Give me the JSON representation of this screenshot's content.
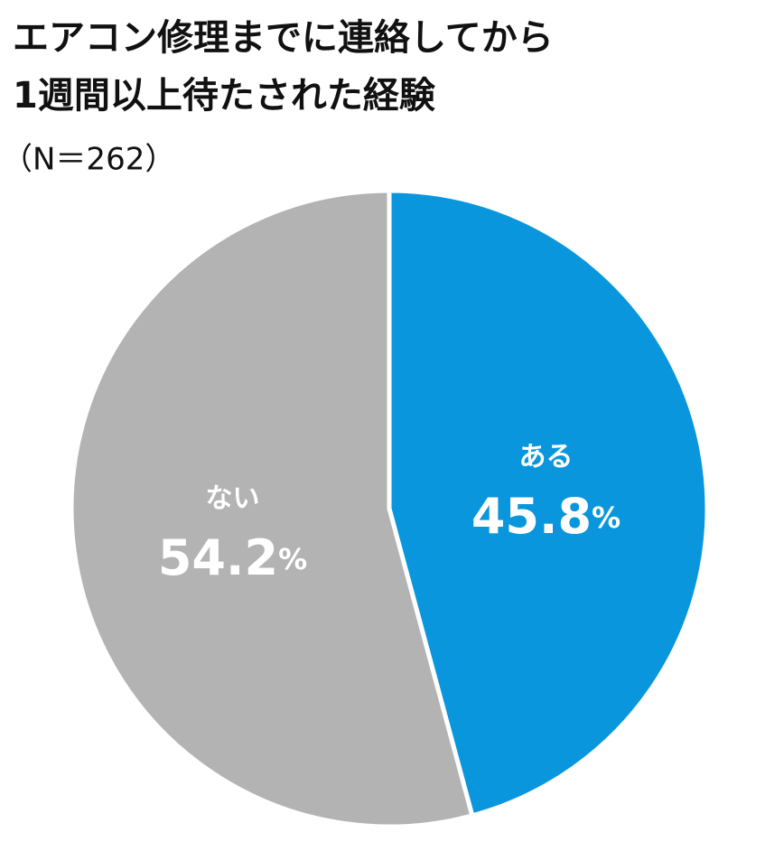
{
  "chart_data": {
    "type": "pie",
    "title": [
      "エアコン修理までに連絡してから",
      "1週間以上待たされた経験"
    ],
    "subtitle": "（N＝262）",
    "categories": [
      "ある",
      "ない"
    ],
    "values": [
      45.8,
      54.2
    ],
    "value_labels": [
      "45.8%",
      "54.2%"
    ],
    "colors": [
      "#0a96dc",
      "#b3b3b3"
    ]
  }
}
